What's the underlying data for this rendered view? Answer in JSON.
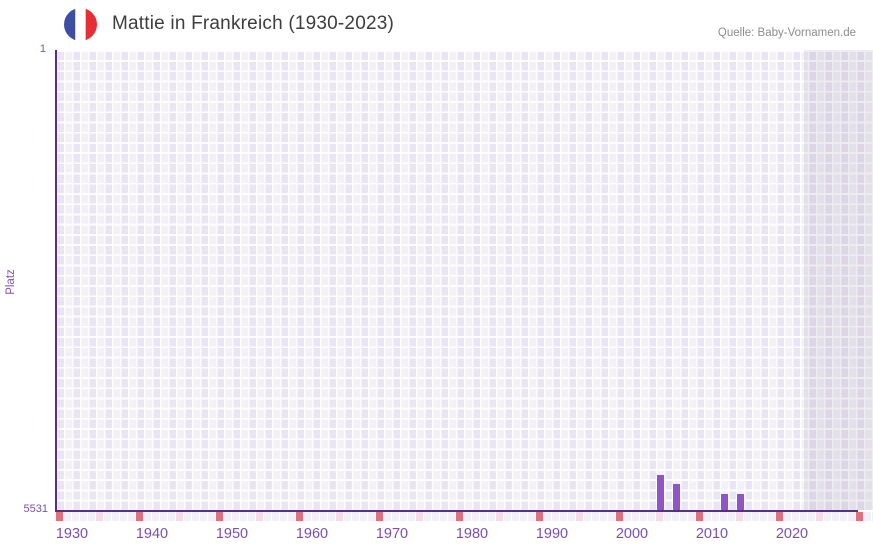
{
  "header": {
    "title": "Mattie in Frankreich (1930-2023)",
    "source": "Quelle: Baby-Vornamen.de",
    "flag_icon": "france-flag-icon"
  },
  "chart_data": {
    "type": "bar",
    "title": "Mattie in Frankreich (1930-2023)",
    "xlabel": "",
    "ylabel": "Platz",
    "y_axis": {
      "top_label": "1",
      "bottom_label": "5531",
      "min": 1,
      "max": 5531,
      "inverted": true
    },
    "x_axis": {
      "tick_years": [
        1930,
        1940,
        1950,
        1960,
        1970,
        1980,
        1990,
        2000,
        2010,
        2020
      ],
      "range_start": 1928,
      "range_end": 2030
    },
    "series": [
      {
        "name": "Platz",
        "points": [
          {
            "year": 2003,
            "rank": 5105
          },
          {
            "year": 2005,
            "rank": 5215
          },
          {
            "year": 2011,
            "rank": 5335
          },
          {
            "year": 2013,
            "rank": 5335
          }
        ]
      }
    ],
    "strip_marks": {
      "red_years": [
        1928,
        1938,
        1948,
        1958,
        1968,
        1978,
        1988,
        1998,
        2008,
        2018,
        2028
      ],
      "pink_years": [
        1933,
        1943,
        1953,
        1963,
        1973,
        1983,
        1993,
        2003,
        2013,
        2023
      ]
    },
    "shaded_region": {
      "start_year": 2021.5,
      "end_year": 2030
    },
    "legend": {
      "visible": false
    },
    "grid": true,
    "colors": {
      "bar": "#8d55c7",
      "axis_line": "#5a2d8a",
      "tick_text": "#7b4fae",
      "title_text": "#3d3d3d",
      "source_text": "#8d8d8d",
      "red_mark": "#e0717c",
      "pink_mark": "#f6dbe5",
      "plot_band_dark": "#eae5f4",
      "plot_band_light": "#f3f0fa",
      "flag_blue": "#3d4fa3",
      "flag_white": "#ffffff",
      "flag_red": "#e52f35"
    }
  }
}
